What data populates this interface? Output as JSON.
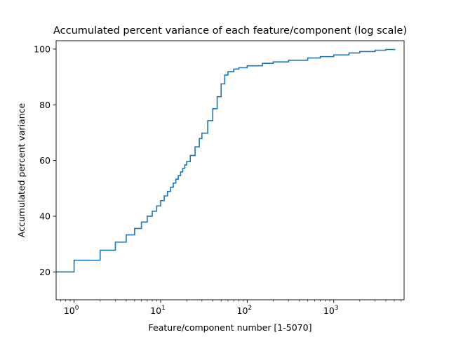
{
  "chart_data": {
    "type": "line",
    "title": "Accumulated percent variance of each feature/component (log scale)",
    "xlabel": "Feature/component number [1-5070]",
    "ylabel": "Accumulated percent variance",
    "x_scale": "log",
    "x_range": [
      0.62,
      6500
    ],
    "y_range": [
      10,
      103
    ],
    "x_ticks": [
      {
        "value": 1,
        "base": "10",
        "exp": "0"
      },
      {
        "value": 10,
        "base": "10",
        "exp": "1"
      },
      {
        "value": 100,
        "base": "10",
        "exp": "2"
      },
      {
        "value": 1000,
        "base": "10",
        "exp": "3"
      }
    ],
    "y_ticks": [
      20,
      40,
      60,
      80,
      100
    ],
    "grid": false,
    "legend": "none",
    "series_color": "#1f77b4",
    "drawstyle": "steps-post",
    "series": [
      {
        "x": [
          0,
          1,
          2,
          3,
          4,
          5,
          6,
          7,
          8,
          9,
          10,
          11,
          12,
          13,
          14,
          15,
          16,
          17,
          18,
          19,
          20,
          22,
          25,
          28,
          30,
          35,
          40,
          45,
          50,
          55,
          60,
          70,
          80,
          100,
          150,
          200,
          300,
          500,
          700,
          1000,
          1500,
          2000,
          3000,
          4000,
          5070
        ],
        "y": [
          20.0,
          24.2,
          27.8,
          30.7,
          33.3,
          35.6,
          37.9,
          40.0,
          41.8,
          43.7,
          45.6,
          47.3,
          48.9,
          50.4,
          51.9,
          53.3,
          54.6,
          55.9,
          57.2,
          58.4,
          59.6,
          61.8,
          64.9,
          67.9,
          69.8,
          74.3,
          78.6,
          82.9,
          87.5,
          90.7,
          91.9,
          92.8,
          93.3,
          94.0,
          94.9,
          95.4,
          96.0,
          96.8,
          97.3,
          97.9,
          98.6,
          99.1,
          99.6,
          99.85,
          100.0
        ]
      }
    ]
  }
}
